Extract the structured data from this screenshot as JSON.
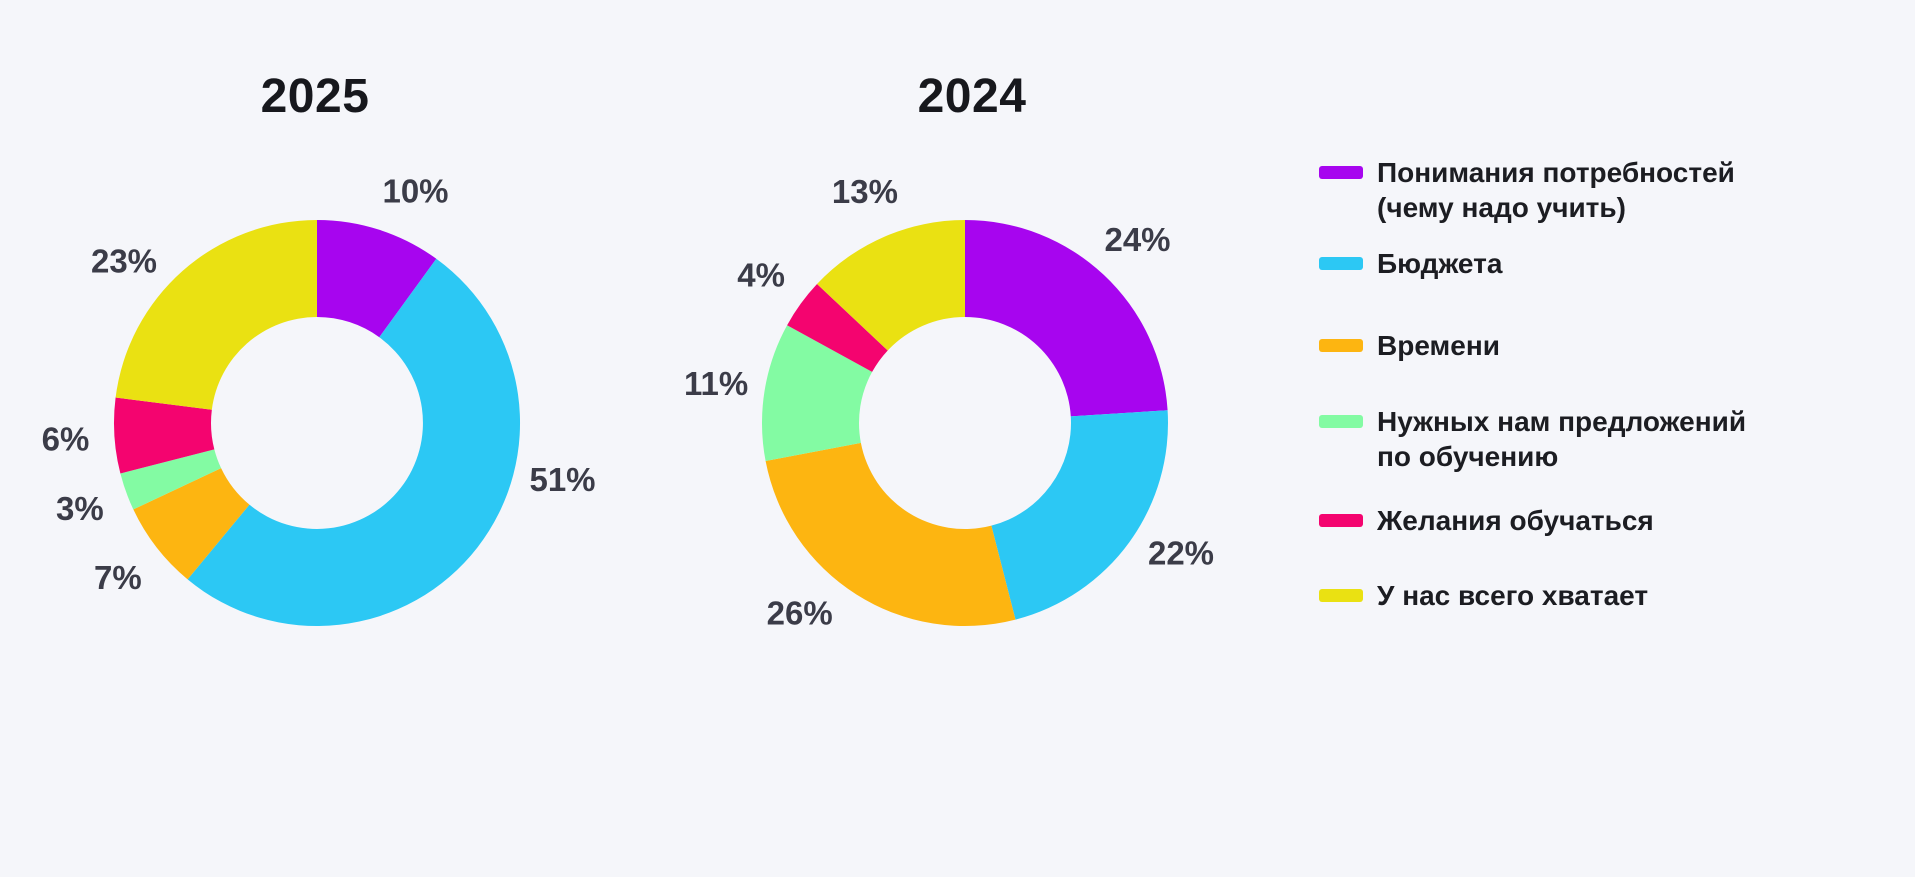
{
  "page": {
    "background_color": "#F5F6FA",
    "text_color_dark": "#17181D",
    "text_color_labels": "#3B3C48"
  },
  "palette": [
    "#A705EF",
    "#2CC8F4",
    "#FDB511",
    "#83FBA3",
    "#F4046F",
    "#EAE112"
  ],
  "chart_data": [
    {
      "type": "pie",
      "donut": true,
      "title": "2025",
      "categories": [
        "Понимания потребностей (чему надо учить)",
        "Бюджета",
        "Времени",
        "Нужных нам предложений по обучению",
        "Желания обучаться",
        "У нас всего хватает"
      ],
      "values": [
        10,
        51,
        7,
        3,
        6,
        23
      ],
      "value_labels": [
        "10%",
        "51%",
        "7%",
        "3%",
        "6%",
        "23%"
      ],
      "colors": [
        "#A705EF",
        "#2CC8F4",
        "#FDB511",
        "#83FBA3",
        "#F4046F",
        "#EAE112"
      ],
      "unit": "%",
      "start_angle_deg": 0,
      "direction": "clockwise",
      "labels_position": "outside",
      "label_angle_hints": {
        "0": 23,
        "1": 103,
        "5": 310
      },
      "legend_position": "right"
    },
    {
      "type": "pie",
      "donut": true,
      "title": "2024",
      "categories": [
        "Понимания потребностей (чему надо учить)",
        "Бюджета",
        "Времени",
        "Нужных нам предложений по обучению",
        "Желания обучаться",
        "У нас всего хватает"
      ],
      "values": [
        24,
        22,
        26,
        11,
        4,
        13
      ],
      "value_labels": [
        "24%",
        "22%",
        "26%",
        "11%",
        "4%",
        "13%"
      ],
      "colors": [
        "#A705EF",
        "#2CC8F4",
        "#FDB511",
        "#83FBA3",
        "#F4046F",
        "#EAE112"
      ],
      "unit": "%",
      "start_angle_deg": 0,
      "direction": "clockwise",
      "labels_position": "outside",
      "label_angle_hints": {
        "1": 121,
        "2": 221
      },
      "legend_position": "right"
    }
  ],
  "legend": {
    "items": [
      {
        "label": "Понимания потребностей\n(чему надо учить)",
        "color": "#A705EF"
      },
      {
        "label": "Бюджета",
        "color": "#2CC8F4"
      },
      {
        "label": "Времени",
        "color": "#FDB511"
      },
      {
        "label": "Нужных нам предложений\nпо обучению",
        "color": "#83FBA3"
      },
      {
        "label": "Желания обучаться",
        "color": "#F4046F"
      },
      {
        "label": "У нас всего хватает",
        "color": "#EAE112"
      }
    ]
  }
}
